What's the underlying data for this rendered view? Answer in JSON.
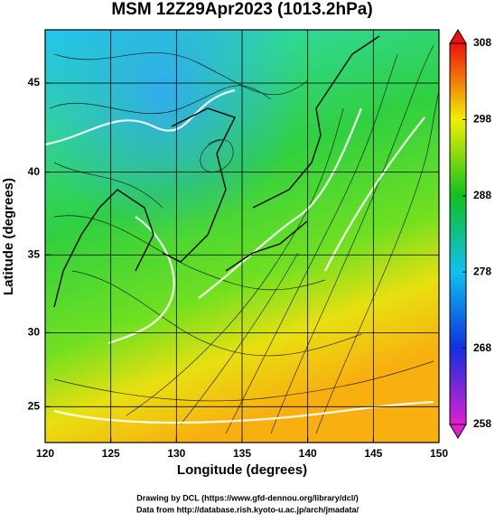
{
  "chart_data": {
    "type": "map",
    "title": "MSM 12Z29Apr2023 (1013.2hPa)",
    "x_label": "Longitude (degrees)",
    "y_label": "Latitude  (degrees)",
    "xlim": [
      120,
      150
    ],
    "xticks": [
      120,
      125,
      130,
      135,
      140,
      145,
      150
    ],
    "ylim": [
      22.5,
      47.8
    ],
    "yticks": [
      25,
      30,
      35,
      40,
      45
    ],
    "grid": true,
    "colorbar": {
      "lim": [
        258,
        308
      ],
      "ticks": [
        258,
        268,
        278,
        288,
        298,
        308
      ],
      "colors": [
        "#e020d0",
        "#1030e0",
        "#10c0f0",
        "#10c020",
        "#f0f000",
        "#f01010"
      ]
    }
  },
  "footer": [
    "Drawing by DCL (https://www.gfd-dennou.org/library/dcl/)",
    "Data from http://database.rish.kyoto-u.ac.jp/arch/jmadata/"
  ]
}
